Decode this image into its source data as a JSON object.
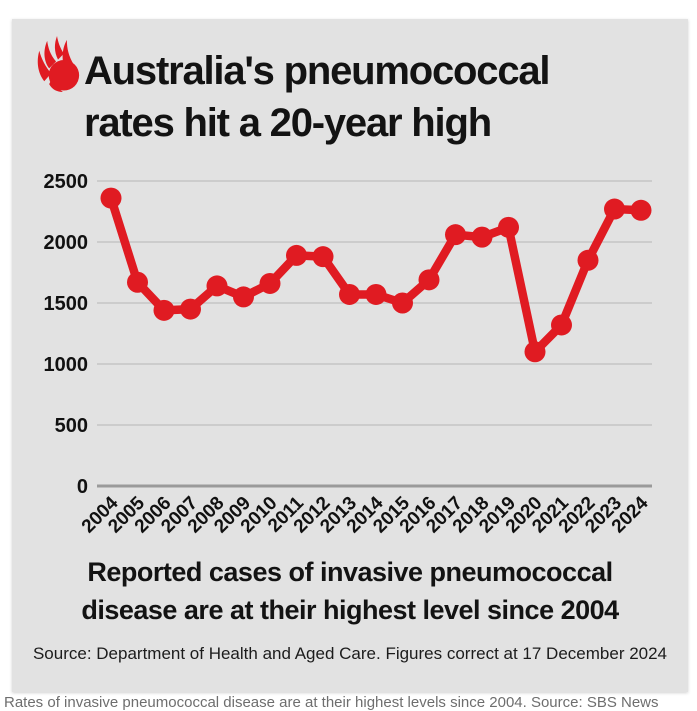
{
  "colors": {
    "card_bg": "#e2e2e2",
    "accent_red": "#e01b22",
    "text": "#131313",
    "caption_gray": "#6e6e6e"
  },
  "brand": {
    "logo_icon": "sbs-mercury-flame-icon"
  },
  "title": {
    "line1": "Australia's pneumococcal",
    "line2": "rates hit a 20-year high"
  },
  "chart_data": {
    "type": "line",
    "title": "Australia's pneumococcal rates hit a 20-year high",
    "categories": [
      "2004",
      "2005",
      "2006",
      "2007",
      "2008",
      "2009",
      "2010",
      "2011",
      "2012",
      "2013",
      "2014",
      "2015",
      "2016",
      "2017",
      "2018",
      "2019",
      "2020",
      "2021",
      "2022",
      "2023",
      "2024"
    ],
    "values": [
      2360,
      1670,
      1440,
      1450,
      1640,
      1550,
      1660,
      1890,
      1880,
      1570,
      1570,
      1500,
      1690,
      2060,
      2040,
      2120,
      1100,
      1320,
      1850,
      2270,
      2260
    ],
    "xlabel": "",
    "ylabel": "",
    "ylim": [
      0,
      2500
    ],
    "yticks": [
      0,
      500,
      1000,
      1500,
      2000,
      2500
    ],
    "grid": "horizontal",
    "legend": "none",
    "line_color": "#e01b22",
    "marker": "circle",
    "grid_color": "#c5c5c5",
    "axis_color": "#9a9a9a",
    "tick_label_color": "#111111"
  },
  "subtitle": {
    "line1": "Reported cases of invasive pneumococcal",
    "line2": "disease are at their highest level since 2004"
  },
  "source": "Source: Department of Health and Aged Care. Figures correct at 17 December 2024",
  "caption": "Rates of invasive pneumococcal disease are at their highest levels since 2004. Source: SBS News"
}
